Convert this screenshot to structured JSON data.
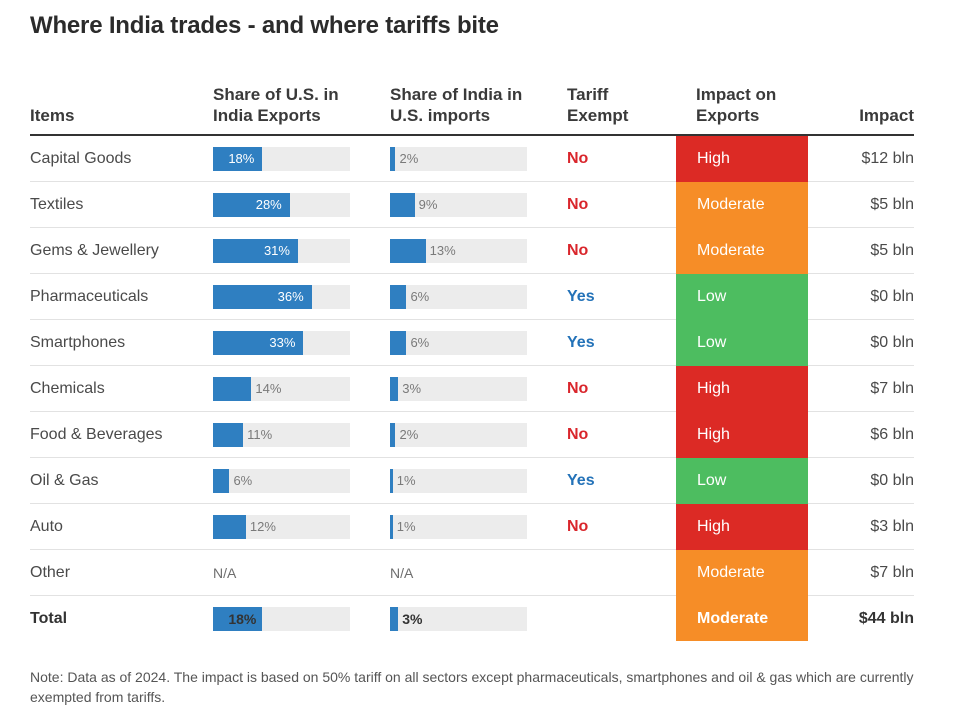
{
  "title": "Where India trades - and where tariffs bite",
  "colors": {
    "bar": "#2f7fc1",
    "track": "#ececec",
    "high": "#dc2a25",
    "moderate": "#f68d27",
    "low": "#4dbd60",
    "no": "#d9262c",
    "yes": "#2372b8"
  },
  "headers": {
    "items": "Items",
    "us_share": "Share of U.S. in\nIndia Exports",
    "india_share": "Share of India in\nU.S. imports",
    "tariff": "Tariff\nExempt",
    "impact_level": "Impact on\nExports",
    "impact": "Impact"
  },
  "chart_data": {
    "type": "table",
    "columns": [
      "Items",
      "Share of U.S. in India Exports",
      "Share of India in U.S. imports",
      "Tariff Exempt",
      "Impact on Exports",
      "Impact"
    ],
    "bar_scale_max": 50,
    "rows": [
      {
        "item": "Capital Goods",
        "us_share": 18,
        "us_label": "18%",
        "india_share": 2,
        "india_label": "2%",
        "exempt": "No",
        "level": "High",
        "impact": "$12 bln"
      },
      {
        "item": "Textiles",
        "us_share": 28,
        "us_label": "28%",
        "india_share": 9,
        "india_label": "9%",
        "exempt": "No",
        "level": "Moderate",
        "impact": "$5 bln"
      },
      {
        "item": "Gems & Jewellery",
        "us_share": 31,
        "us_label": "31%",
        "india_share": 13,
        "india_label": "13%",
        "exempt": "No",
        "level": "Moderate",
        "impact": "$5 bln"
      },
      {
        "item": "Pharmaceuticals",
        "us_share": 36,
        "us_label": "36%",
        "india_share": 6,
        "india_label": "6%",
        "exempt": "Yes",
        "level": "Low",
        "impact": "$0 bln"
      },
      {
        "item": "Smartphones",
        "us_share": 33,
        "us_label": "33%",
        "india_share": 6,
        "india_label": "6%",
        "exempt": "Yes",
        "level": "Low",
        "impact": "$0 bln"
      },
      {
        "item": "Chemicals",
        "us_share": 14,
        "us_label": "14%",
        "india_share": 3,
        "india_label": "3%",
        "exempt": "No",
        "level": "High",
        "impact": "$7 bln"
      },
      {
        "item": "Food & Beverages",
        "us_share": 11,
        "us_label": "11%",
        "india_share": 2,
        "india_label": "2%",
        "exempt": "No",
        "level": "High",
        "impact": "$6 bln"
      },
      {
        "item": "Oil & Gas",
        "us_share": 6,
        "us_label": "6%",
        "india_share": 1,
        "india_label": "1%",
        "exempt": "Yes",
        "level": "Low",
        "impact": "$0 bln"
      },
      {
        "item": "Auto",
        "us_share": 12,
        "us_label": "12%",
        "india_share": 1,
        "india_label": "1%",
        "exempt": "No",
        "level": "High",
        "impact": "$3 bln"
      },
      {
        "item": "Other",
        "us_share": null,
        "us_label": "N/A",
        "india_share": null,
        "india_label": "N/A",
        "exempt": "",
        "level": "Moderate",
        "impact": "$7 bln"
      }
    ],
    "total": {
      "item": "Total",
      "us_share": 18,
      "us_label": "18%",
      "india_share": 3,
      "india_label": "3%",
      "exempt": "",
      "level": "Moderate",
      "impact": "$44 bln"
    }
  },
  "note": "Note: Data as of 2024. The impact is based on 50% tariff on all sectors except pharmaceuticals, smartphones and oil & gas which are currently exempted from tariffs."
}
